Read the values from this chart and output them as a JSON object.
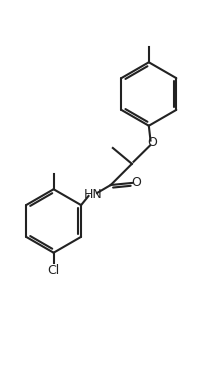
{
  "background": "#ffffff",
  "line_color": "#222222",
  "line_width": 1.5,
  "figsize": [
    2.13,
    3.7
  ],
  "dpi": 100,
  "xlim": [
    0,
    10
  ],
  "ylim": [
    0,
    17
  ]
}
